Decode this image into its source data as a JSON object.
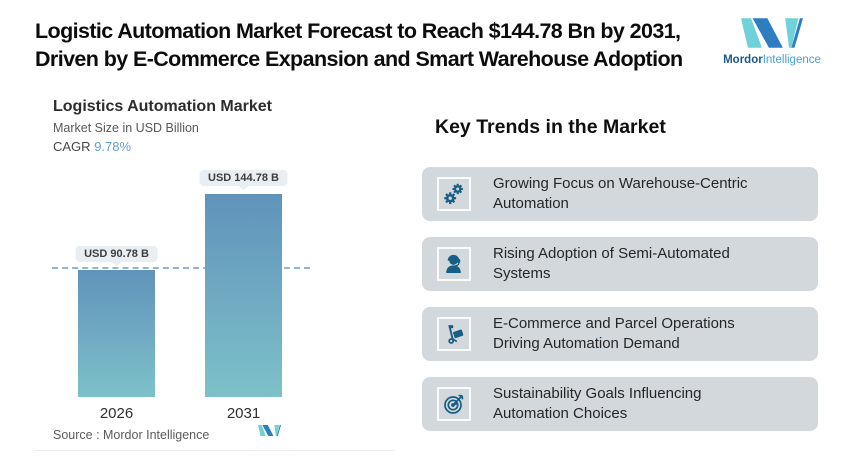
{
  "header": {
    "title_line1": "Logistic Automation Market Forecast to Reach $144.78 Bn by 2031,",
    "title_line2": "Driven by E-Commerce Expansion and Smart Warehouse Adoption",
    "brand_bold": "Mordor",
    "brand_light": "Intelligence"
  },
  "chart": {
    "title": "Logistics Automation Market",
    "subtitle": "Market Size in USD Billion",
    "cagr_label": "CAGR",
    "cagr_value": "9.78%",
    "source": "Source :  Mordor Intelligence"
  },
  "chart_data": {
    "type": "bar",
    "title": "Logistics Automation Market",
    "ylabel": "Market Size in USD Billion",
    "cagr": "9.78%",
    "categories": [
      "2026",
      "2031"
    ],
    "values": [
      90.78,
      144.78
    ],
    "value_labels": [
      "USD 90.78 B",
      "USD 144.78 B"
    ],
    "ylim": [
      0,
      160
    ],
    "reference_line": 90.78,
    "grid": false,
    "legend": false,
    "bar_gradient_top": "#6093ba",
    "bar_gradient_bottom": "#7dc1c9",
    "reference_line_color": "#8fb4d4"
  },
  "trends": {
    "heading": "Key Trends in the Market",
    "items": [
      {
        "icon": "gears-icon",
        "line1": "Growing Focus on Warehouse-Centric",
        "line2": "Automation"
      },
      {
        "icon": "support-person-icon",
        "line1": "Rising Adoption of Semi-Automated",
        "line2": "Systems"
      },
      {
        "icon": "hand-truck-icon",
        "line1": "E-Commerce and Parcel Operations",
        "line2": "Driving Automation Demand"
      },
      {
        "icon": "target-arrow-icon",
        "line1": "Sustainability Goals Influencing",
        "line2": "Automation Choices"
      }
    ]
  },
  "colors": {
    "card_background": "#d3d8dd",
    "icon_blue": "#175e84",
    "logo_dark_blue": "#2d7dc0",
    "logo_teal": "#6fd1da",
    "cagr_accent": "#64a1d3",
    "callout_background": "#e9eef2"
  }
}
